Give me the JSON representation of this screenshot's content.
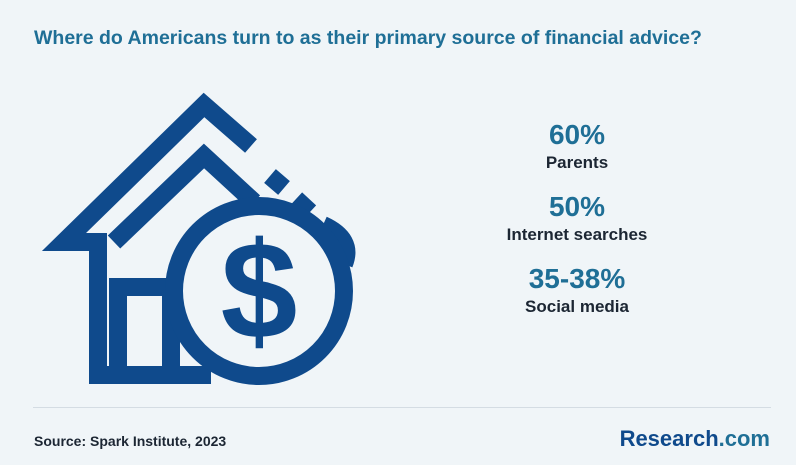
{
  "header": {
    "title": "Where do Americans turn to as their primary source of financial advice?"
  },
  "illustration": {
    "icon": "house-dollar-icon",
    "color": "#0f4a8c"
  },
  "stats": [
    {
      "value": "60%",
      "label": "Parents"
    },
    {
      "value": "50%",
      "label": "Internet searches"
    },
    {
      "value": "35-38%",
      "label": "Social media"
    }
  ],
  "footer": {
    "source": "Source: Spark Institute, 2023",
    "brand_name": "Research",
    "brand_tld": ".com"
  },
  "colors": {
    "accent": "#1f6f96",
    "brand": "#0f4a8c",
    "text": "#1c2633",
    "background": "#f0f5f8"
  }
}
